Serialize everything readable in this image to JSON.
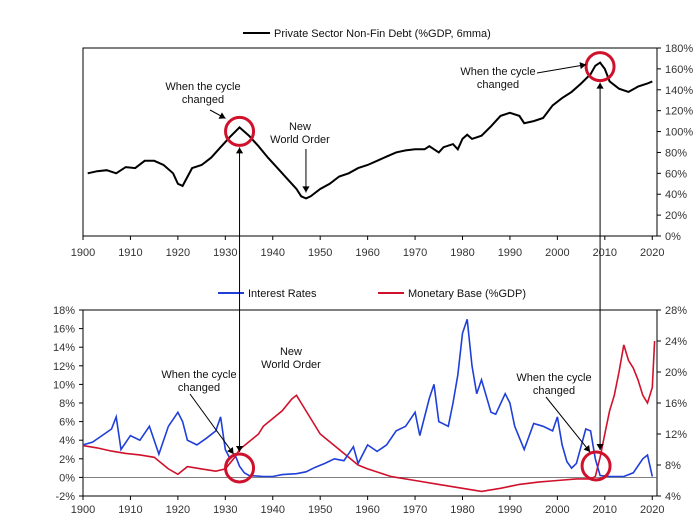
{
  "chart_data": [
    {
      "type": "line",
      "title": "Private Sector Non-Fin Debt (%GDP, 6mma)",
      "legend": "top-center",
      "color": "#000000",
      "xlim": [
        1900,
        2021
      ],
      "ylim": [
        0,
        180
      ],
      "x_ticks": [
        1900,
        1910,
        1920,
        1930,
        1940,
        1950,
        1960,
        1970,
        1980,
        1990,
        2000,
        2010,
        2020
      ],
      "y_ticks": [
        "0%",
        "20%",
        "40%",
        "60%",
        "80%",
        "100%",
        "120%",
        "140%",
        "160%",
        "180%"
      ],
      "series": [
        {
          "name": "Private Sector Non-Fin Debt (%GDP, 6mma)",
          "points": [
            [
              1901,
              60
            ],
            [
              1903,
              62
            ],
            [
              1905,
              63
            ],
            [
              1907,
              60
            ],
            [
              1909,
              66
            ],
            [
              1911,
              65
            ],
            [
              1913,
              72
            ],
            [
              1915,
              72
            ],
            [
              1917,
              68
            ],
            [
              1919,
              60
            ],
            [
              1920,
              50
            ],
            [
              1921,
              48
            ],
            [
              1923,
              65
            ],
            [
              1925,
              68
            ],
            [
              1927,
              75
            ],
            [
              1929,
              85
            ],
            [
              1931,
              95
            ],
            [
              1933,
              104
            ],
            [
              1935,
              96
            ],
            [
              1937,
              86
            ],
            [
              1939,
              75
            ],
            [
              1941,
              65
            ],
            [
              1943,
              55
            ],
            [
              1945,
              45
            ],
            [
              1946,
              38
            ],
            [
              1947,
              36
            ],
            [
              1948,
              38
            ],
            [
              1950,
              45
            ],
            [
              1952,
              50
            ],
            [
              1954,
              57
            ],
            [
              1956,
              60
            ],
            [
              1958,
              65
            ],
            [
              1960,
              68
            ],
            [
              1962,
              72
            ],
            [
              1964,
              76
            ],
            [
              1966,
              80
            ],
            [
              1968,
              82
            ],
            [
              1970,
              83
            ],
            [
              1972,
              83
            ],
            [
              1973,
              86
            ],
            [
              1975,
              80
            ],
            [
              1976,
              85
            ],
            [
              1978,
              88
            ],
            [
              1979,
              83
            ],
            [
              1980,
              93
            ],
            [
              1981,
              97
            ],
            [
              1982,
              93
            ],
            [
              1984,
              96
            ],
            [
              1986,
              105
            ],
            [
              1988,
              115
            ],
            [
              1990,
              118
            ],
            [
              1992,
              115
            ],
            [
              1993,
              108
            ],
            [
              1995,
              110
            ],
            [
              1997,
              113
            ],
            [
              1999,
              125
            ],
            [
              2001,
              132
            ],
            [
              2003,
              138
            ],
            [
              2005,
              146
            ],
            [
              2007,
              155
            ],
            [
              2008,
              163
            ],
            [
              2009,
              166
            ],
            [
              2010,
              160
            ],
            [
              2011,
              148
            ],
            [
              2013,
              141
            ],
            [
              2015,
              138
            ],
            [
              2017,
              143
            ],
            [
              2019,
              146
            ],
            [
              2020,
              148
            ]
          ]
        }
      ],
      "annotations": [
        {
          "lines": [
            "When the cycle",
            "changed"
          ],
          "x": 1933,
          "y": 104
        },
        {
          "lines": [
            "New",
            "World Order"
          ],
          "x": 1947,
          "y": 36
        },
        {
          "lines": [
            "When the cycle",
            "changed"
          ],
          "x": 2009,
          "y": 166
        }
      ]
    },
    {
      "type": "line",
      "legend": "top-center",
      "xlim": [
        1900,
        2021
      ],
      "x_ticks": [
        1900,
        1910,
        1920,
        1930,
        1940,
        1950,
        1960,
        1970,
        1980,
        1990,
        2000,
        2010,
        2020
      ],
      "y_left": {
        "lim": [
          -2,
          18
        ],
        "ticks": [
          "-2%",
          "0%",
          "2%",
          "4%",
          "6%",
          "8%",
          "10%",
          "12%",
          "14%",
          "16%",
          "18%"
        ],
        "color": "#1f3fd8"
      },
      "y_right": {
        "lim": [
          4,
          28
        ],
        "ticks": [
          "4%",
          "8%",
          "12%",
          "16%",
          "20%",
          "24%",
          "28%"
        ],
        "color": "#d0112b"
      },
      "series": [
        {
          "name": "Interest Rates",
          "axis": "left",
          "color": "#1f3fd8",
          "points": [
            [
              1900,
              3.5
            ],
            [
              1902,
              3.8
            ],
            [
              1904,
              4.5
            ],
            [
              1906,
              5.2
            ],
            [
              1907,
              6.5
            ],
            [
              1908,
              3.0
            ],
            [
              1910,
              4.5
            ],
            [
              1912,
              4.0
            ],
            [
              1914,
              5.5
            ],
            [
              1916,
              2.5
            ],
            [
              1918,
              5.5
            ],
            [
              1920,
              7.0
            ],
            [
              1921,
              6.0
            ],
            [
              1922,
              4.0
            ],
            [
              1924,
              3.5
            ],
            [
              1926,
              4.2
            ],
            [
              1928,
              5.0
            ],
            [
              1929,
              6.5
            ],
            [
              1930,
              3.0
            ],
            [
              1931,
              2.0
            ],
            [
              1932,
              2.5
            ],
            [
              1933,
              1.2
            ],
            [
              1934,
              0.5
            ],
            [
              1935,
              0.2
            ],
            [
              1938,
              0.1
            ],
            [
              1940,
              0.1
            ],
            [
              1942,
              0.3
            ],
            [
              1945,
              0.4
            ],
            [
              1947,
              0.6
            ],
            [
              1949,
              1.1
            ],
            [
              1951,
              1.5
            ],
            [
              1953,
              2.0
            ],
            [
              1955,
              1.8
            ],
            [
              1957,
              3.3
            ],
            [
              1958,
              1.5
            ],
            [
              1960,
              3.5
            ],
            [
              1962,
              2.8
            ],
            [
              1964,
              3.5
            ],
            [
              1966,
              5.0
            ],
            [
              1968,
              5.5
            ],
            [
              1970,
              7.0
            ],
            [
              1971,
              4.5
            ],
            [
              1973,
              8.5
            ],
            [
              1974,
              10.0
            ],
            [
              1975,
              6.0
            ],
            [
              1977,
              5.5
            ],
            [
              1978,
              8.0
            ],
            [
              1979,
              11.0
            ],
            [
              1980,
              15.5
            ],
            [
              1981,
              17.0
            ],
            [
              1982,
              12.0
            ],
            [
              1983,
              9.0
            ],
            [
              1984,
              10.5
            ],
            [
              1986,
              7.0
            ],
            [
              1987,
              6.8
            ],
            [
              1989,
              9.0
            ],
            [
              1990,
              8.0
            ],
            [
              1991,
              5.5
            ],
            [
              1993,
              3.0
            ],
            [
              1995,
              5.8
            ],
            [
              1997,
              5.5
            ],
            [
              1999,
              5.0
            ],
            [
              2000,
              6.5
            ],
            [
              2001,
              3.5
            ],
            [
              2002,
              1.7
            ],
            [
              2003,
              1.0
            ],
            [
              2004,
              1.5
            ],
            [
              2006,
              5.2
            ],
            [
              2007,
              5.0
            ],
            [
              2008,
              2.0
            ],
            [
              2009,
              0.2
            ],
            [
              2011,
              0.1
            ],
            [
              2014,
              0.1
            ],
            [
              2016,
              0.5
            ],
            [
              2018,
              2.0
            ],
            [
              2019,
              2.4
            ],
            [
              2020,
              0.1
            ]
          ]
        },
        {
          "name": "Monetary Base (%GDP)",
          "axis": "right",
          "color": "#d0112b",
          "points": [
            [
              1900,
              10.5
            ],
            [
              1903,
              10.2
            ],
            [
              1906,
              9.8
            ],
            [
              1909,
              9.5
            ],
            [
              1912,
              9.3
            ],
            [
              1915,
              9.0
            ],
            [
              1918,
              7.5
            ],
            [
              1920,
              6.8
            ],
            [
              1922,
              7.8
            ],
            [
              1925,
              7.5
            ],
            [
              1928,
              7.2
            ],
            [
              1930,
              7.5
            ],
            [
              1932,
              9.0
            ],
            [
              1933,
              10.0
            ],
            [
              1935,
              11.0
            ],
            [
              1937,
              12.0
            ],
            [
              1938,
              13.0
            ],
            [
              1940,
              14.0
            ],
            [
              1942,
              15.0
            ],
            [
              1944,
              16.5
            ],
            [
              1945,
              17.0
            ],
            [
              1946,
              16.0
            ],
            [
              1948,
              14.0
            ],
            [
              1950,
              12.0
            ],
            [
              1952,
              11.0
            ],
            [
              1955,
              9.5
            ],
            [
              1958,
              8.0
            ],
            [
              1960,
              7.5
            ],
            [
              1965,
              6.5
            ],
            [
              1970,
              6.0
            ],
            [
              1975,
              5.5
            ],
            [
              1980,
              5.0
            ],
            [
              1984,
              4.6
            ],
            [
              1988,
              5.0
            ],
            [
              1992,
              5.5
            ],
            [
              1996,
              5.8
            ],
            [
              2000,
              6.0
            ],
            [
              2004,
              6.2
            ],
            [
              2007,
              6.2
            ],
            [
              2008,
              6.5
            ],
            [
              2009,
              9.0
            ],
            [
              2010,
              12.0
            ],
            [
              2011,
              15.0
            ],
            [
              2012,
              17.0
            ],
            [
              2013,
              20.0
            ],
            [
              2014,
              23.5
            ],
            [
              2015,
              21.5
            ],
            [
              2016,
              20.5
            ],
            [
              2017,
              19.0
            ],
            [
              2018,
              17.0
            ],
            [
              2019,
              16.0
            ],
            [
              2020,
              18.0
            ],
            [
              2020.5,
              24.0
            ]
          ]
        }
      ],
      "annotations": [
        {
          "lines": [
            "When the cycle",
            "changed"
          ],
          "x": 1933,
          "y": 0.8
        },
        {
          "lines": [
            "New",
            "World Order"
          ],
          "x": 1947,
          "y": 10
        },
        {
          "lines": [
            "When the cycle",
            "changed"
          ],
          "x": 2009,
          "y": 0.8
        }
      ]
    }
  ]
}
